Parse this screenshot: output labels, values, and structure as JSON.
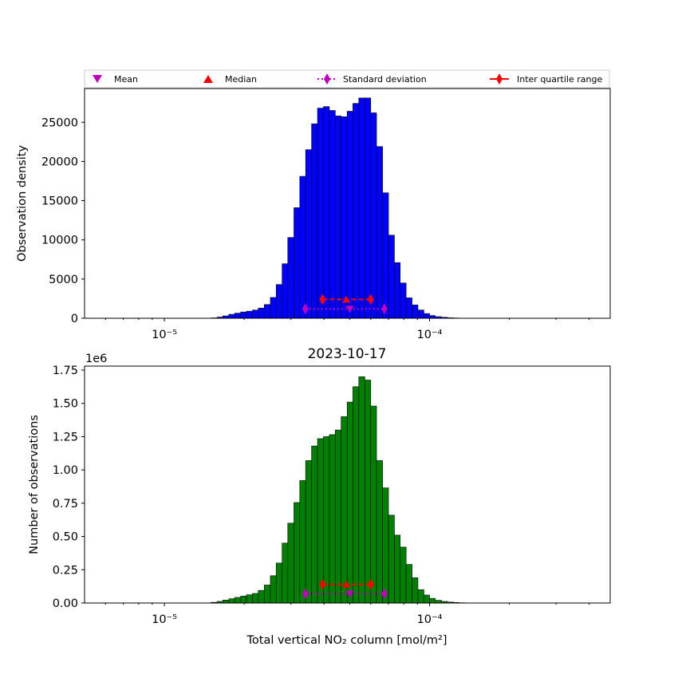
{
  "legend": {
    "placement": "top, above upper chart",
    "entries": [
      {
        "label": "Mean",
        "marker": "triangle-down",
        "color": "#bf00bf"
      },
      {
        "label": "Median",
        "marker": "triangle-up",
        "color": "#ff0000"
      },
      {
        "label": "Standard deviation",
        "marker": "diamond",
        "line": "dotted",
        "color": "#bf00bf"
      },
      {
        "label": "Inter quartile range",
        "marker": "diamond",
        "line": "solid",
        "color": "#ff0000"
      }
    ]
  },
  "chart_data": [
    {
      "type": "bar",
      "title": "",
      "xlabel": "",
      "ylabel": "Observation density",
      "xscale": "log",
      "xlim": [
        5e-06,
        0.00048
      ],
      "ylim": [
        0,
        29300
      ],
      "yticks": [
        0,
        5000,
        10000,
        15000,
        20000,
        25000
      ],
      "ytick_labels": [
        "0",
        "5000",
        "10000",
        "15000",
        "20000",
        "25000"
      ],
      "xticks": [
        1e-05,
        0.0001
      ],
      "xtick_labels": [
        "10⁻⁵",
        "10⁻⁴"
      ],
      "offset_text": "",
      "bar_color": "#0000ff",
      "bin_edges": [
        1.5e-05,
        1.58e-05,
        1.66e-05,
        1.75e-05,
        1.84e-05,
        1.94e-05,
        2.04e-05,
        2.15e-05,
        2.26e-05,
        2.38e-05,
        2.51e-05,
        2.64e-05,
        2.78e-05,
        2.92e-05,
        3.08e-05,
        3.24e-05,
        3.41e-05,
        3.59e-05,
        3.78e-05,
        3.98e-05,
        4.19e-05,
        4.41e-05,
        4.64e-05,
        4.89e-05,
        5.14e-05,
        5.41e-05,
        5.7e-05,
        6e-05,
        6.31e-05,
        6.65e-05,
        7e-05,
        7.37e-05,
        7.75e-05,
        8.16e-05,
        8.59e-05,
        9.04e-05,
        9.52e-05,
        0.0001,
        0.000105,
        0.000111,
        0.000117,
        0.000123,
        0.000129,
        0.000136,
        0.000143,
        0.000151
      ],
      "values": [
        50,
        150,
        300,
        500,
        650,
        800,
        900,
        1050,
        1300,
        1750,
        2650,
        4300,
        6950,
        10300,
        14100,
        18100,
        21500,
        24800,
        26800,
        27000,
        26500,
        25800,
        25700,
        26400,
        27400,
        28100,
        28100,
        26200,
        21900,
        16000,
        10600,
        7100,
        4500,
        2600,
        1700,
        1050,
        600,
        350,
        200,
        120,
        60,
        35,
        20,
        10,
        5
      ],
      "stats": {
        "mean": {
          "x": 5e-05,
          "y": 1200
        },
        "median": {
          "x": 4.85e-05,
          "y": 2400
        },
        "iqr": {
          "x": [
            3.95e-05,
            6e-05
          ],
          "y": 2400
        },
        "std": {
          "x": [
            3.4e-05,
            6.75e-05
          ],
          "y": 1200
        }
      }
    },
    {
      "type": "bar",
      "title": "2023-10-17",
      "xlabel": "Total vertical NO₂ column [mol/m²]",
      "ylabel": "Number of observations",
      "xscale": "log",
      "xlim": [
        5e-06,
        0.00048
      ],
      "ylim": [
        0,
        1.78
      ],
      "yticks": [
        0,
        0.25,
        0.5,
        0.75,
        1.0,
        1.25,
        1.5,
        1.75
      ],
      "ytick_labels": [
        "0.00",
        "0.25",
        "0.50",
        "0.75",
        "1.00",
        "1.25",
        "1.50",
        "1.75"
      ],
      "xticks": [
        1e-05,
        0.0001
      ],
      "xtick_labels": [
        "10⁻⁵",
        "10⁻⁴"
      ],
      "offset_text": "1e6",
      "bar_color": "#008000",
      "bin_edges": [
        1.5e-05,
        1.58e-05,
        1.66e-05,
        1.75e-05,
        1.84e-05,
        1.94e-05,
        2.04e-05,
        2.15e-05,
        2.26e-05,
        2.38e-05,
        2.51e-05,
        2.64e-05,
        2.78e-05,
        2.92e-05,
        3.08e-05,
        3.24e-05,
        3.41e-05,
        3.59e-05,
        3.78e-05,
        3.98e-05,
        4.19e-05,
        4.41e-05,
        4.64e-05,
        4.89e-05,
        5.14e-05,
        5.41e-05,
        5.7e-05,
        6e-05,
        6.31e-05,
        6.65e-05,
        7e-05,
        7.37e-05,
        7.75e-05,
        8.16e-05,
        8.59e-05,
        9.04e-05,
        9.52e-05,
        0.0001,
        0.000105,
        0.000111,
        0.000117,
        0.000123,
        0.000129,
        0.000136,
        0.000143,
        0.000151
      ],
      "values": [
        0.005,
        0.012,
        0.022,
        0.032,
        0.042,
        0.052,
        0.062,
        0.072,
        0.095,
        0.135,
        0.205,
        0.3,
        0.45,
        0.6,
        0.755,
        0.92,
        1.07,
        1.18,
        1.235,
        1.25,
        1.265,
        1.3,
        1.4,
        1.51,
        1.625,
        1.7,
        1.675,
        1.48,
        1.07,
        0.865,
        0.66,
        0.51,
        0.42,
        0.29,
        0.19,
        0.1,
        0.06,
        0.035,
        0.02,
        0.012,
        0.007,
        0.004,
        0.002,
        0.001,
        0.0005
      ],
      "stats": {
        "mean": {
          "x": 5e-05,
          "y": 0.07
        },
        "median": {
          "x": 4.85e-05,
          "y": 0.14
        },
        "iqr": {
          "x": [
            3.95e-05,
            6e-05
          ],
          "y": 0.14
        },
        "std": {
          "x": [
            3.4e-05,
            6.75e-05
          ],
          "y": 0.07
        }
      }
    }
  ]
}
